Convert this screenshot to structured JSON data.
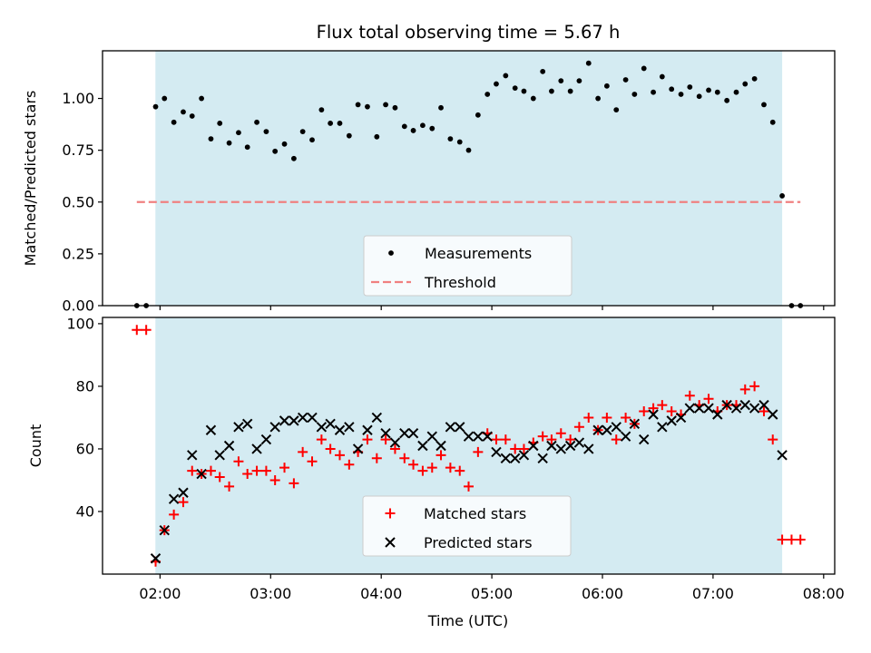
{
  "chart_data": {
    "title": "Flux total observing time = 5.67 h",
    "shaded_span": {
      "start": 1.958,
      "end": 7.625
    },
    "xlim": [
      1.48,
      8.1
    ],
    "x_ticks": [
      {
        "value": 2,
        "label": "02:00"
      },
      {
        "value": 3,
        "label": "03:00"
      },
      {
        "value": 4,
        "label": "04:00"
      },
      {
        "value": 5,
        "label": "05:00"
      },
      {
        "value": 6,
        "label": "06:00"
      },
      {
        "value": 7,
        "label": "07:00"
      },
      {
        "value": 8,
        "label": "08:00"
      }
    ],
    "xlabel": "Time (UTC)",
    "panels": [
      {
        "type": "scatter",
        "ylabel": "Matched/Predicted stars",
        "ylim": [
          0,
          1.23
        ],
        "y_ticks": [
          {
            "value": 0,
            "label": "0.00"
          },
          {
            "value": 0.25,
            "label": "0.25"
          },
          {
            "value": 0.5,
            "label": "0.50"
          },
          {
            "value": 0.75,
            "label": "0.75"
          },
          {
            "value": 1.0,
            "label": "1.00"
          }
        ],
        "legend_position": "lower-center",
        "series": [
          {
            "name": "Measurements",
            "marker": "dot",
            "color": "#000000",
            "points": [
              [
                1.79,
                0.0
              ],
              [
                1.875,
                0.0
              ],
              [
                1.96,
                0.96
              ],
              [
                2.04,
                1.0
              ],
              [
                2.125,
                0.885
              ],
              [
                2.21,
                0.935
              ],
              [
                2.29,
                0.915
              ],
              [
                2.375,
                1.0
              ],
              [
                2.46,
                0.805
              ],
              [
                2.54,
                0.88
              ],
              [
                2.625,
                0.785
              ],
              [
                2.71,
                0.835
              ],
              [
                2.79,
                0.765
              ],
              [
                2.875,
                0.885
              ],
              [
                2.96,
                0.84
              ],
              [
                3.04,
                0.745
              ],
              [
                3.125,
                0.78
              ],
              [
                3.21,
                0.71
              ],
              [
                3.29,
                0.84
              ],
              [
                3.375,
                0.8
              ],
              [
                3.46,
                0.945
              ],
              [
                3.54,
                0.88
              ],
              [
                3.625,
                0.88
              ],
              [
                3.71,
                0.82
              ],
              [
                3.79,
                0.97
              ],
              [
                3.875,
                0.96
              ],
              [
                3.96,
                0.815
              ],
              [
                4.04,
                0.97
              ],
              [
                4.125,
                0.955
              ],
              [
                4.21,
                0.865
              ],
              [
                4.29,
                0.845
              ],
              [
                4.375,
                0.87
              ],
              [
                4.46,
                0.855
              ],
              [
                4.54,
                0.955
              ],
              [
                4.625,
                0.805
              ],
              [
                4.71,
                0.79
              ],
              [
                4.79,
                0.75
              ],
              [
                4.875,
                0.92
              ],
              [
                4.96,
                1.02
              ],
              [
                5.04,
                1.07
              ],
              [
                5.125,
                1.11
              ],
              [
                5.21,
                1.05
              ],
              [
                5.29,
                1.035
              ],
              [
                5.375,
                1.0
              ],
              [
                5.46,
                1.13
              ],
              [
                5.54,
                1.035
              ],
              [
                5.625,
                1.085
              ],
              [
                5.71,
                1.035
              ],
              [
                5.79,
                1.085
              ],
              [
                5.875,
                1.17
              ],
              [
                5.96,
                1.0
              ],
              [
                6.04,
                1.06
              ],
              [
                6.125,
                0.945
              ],
              [
                6.21,
                1.09
              ],
              [
                6.29,
                1.02
              ],
              [
                6.375,
                1.145
              ],
              [
                6.46,
                1.03
              ],
              [
                6.54,
                1.105
              ],
              [
                6.625,
                1.045
              ],
              [
                6.71,
                1.02
              ],
              [
                6.79,
                1.055
              ],
              [
                6.875,
                1.01
              ],
              [
                6.96,
                1.04
              ],
              [
                7.04,
                1.03
              ],
              [
                7.125,
                0.99
              ],
              [
                7.21,
                1.03
              ],
              [
                7.29,
                1.07
              ],
              [
                7.375,
                1.095
              ],
              [
                7.46,
                0.97
              ],
              [
                7.54,
                0.885
              ],
              [
                7.625,
                0.53
              ],
              [
                7.71,
                0.0
              ],
              [
                7.79,
                0.0
              ]
            ]
          },
          {
            "name": "Threshold",
            "marker": "dashed-line",
            "color": "#f08080",
            "points": [
              [
                1.79,
                0.5
              ],
              [
                7.79,
                0.5
              ]
            ]
          }
        ]
      },
      {
        "type": "scatter",
        "ylabel": "Count",
        "ylim": [
          20,
          102
        ],
        "y_ticks": [
          {
            "value": 40,
            "label": "40"
          },
          {
            "value": 60,
            "label": "60"
          },
          {
            "value": 80,
            "label": "80"
          },
          {
            "value": 100,
            "label": "100"
          }
        ],
        "legend_position": "lower-center",
        "series": [
          {
            "name": "Matched stars",
            "marker": "plus",
            "color": "#ff0000",
            "points": [
              [
                1.79,
                98
              ],
              [
                1.875,
                98
              ],
              [
                1.96,
                24
              ],
              [
                2.04,
                34
              ],
              [
                2.125,
                39
              ],
              [
                2.21,
                43
              ],
              [
                2.29,
                53
              ],
              [
                2.375,
                52
              ],
              [
                2.46,
                53
              ],
              [
                2.54,
                51
              ],
              [
                2.625,
                48
              ],
              [
                2.71,
                56
              ],
              [
                2.79,
                52
              ],
              [
                2.875,
                53
              ],
              [
                2.96,
                53
              ],
              [
                3.04,
                50
              ],
              [
                3.125,
                54
              ],
              [
                3.21,
                49
              ],
              [
                3.29,
                59
              ],
              [
                3.375,
                56
              ],
              [
                3.46,
                63
              ],
              [
                3.54,
                60
              ],
              [
                3.625,
                58
              ],
              [
                3.71,
                55
              ],
              [
                3.79,
                59
              ],
              [
                3.875,
                63
              ],
              [
                3.96,
                57
              ],
              [
                4.04,
                63
              ],
              [
                4.125,
                60
              ],
              [
                4.21,
                57
              ],
              [
                4.29,
                55
              ],
              [
                4.375,
                53
              ],
              [
                4.46,
                54
              ],
              [
                4.54,
                58
              ],
              [
                4.625,
                54
              ],
              [
                4.71,
                53
              ],
              [
                4.79,
                48
              ],
              [
                4.875,
                59
              ],
              [
                4.96,
                65
              ],
              [
                5.04,
                63
              ],
              [
                5.125,
                63
              ],
              [
                5.21,
                60
              ],
              [
                5.29,
                60
              ],
              [
                5.375,
                62
              ],
              [
                5.46,
                64
              ],
              [
                5.54,
                63
              ],
              [
                5.625,
                65
              ],
              [
                5.71,
                63
              ],
              [
                5.79,
                67
              ],
              [
                5.875,
                70
              ],
              [
                5.96,
                66
              ],
              [
                6.04,
                70
              ],
              [
                6.125,
                63
              ],
              [
                6.21,
                70
              ],
              [
                6.29,
                68
              ],
              [
                6.375,
                72
              ],
              [
                6.46,
                73
              ],
              [
                6.54,
                74
              ],
              [
                6.625,
                72
              ],
              [
                6.71,
                71
              ],
              [
                6.79,
                77
              ],
              [
                6.875,
                74
              ],
              [
                6.96,
                76
              ],
              [
                7.04,
                72
              ],
              [
                7.125,
                74
              ],
              [
                7.21,
                74
              ],
              [
                7.29,
                79
              ],
              [
                7.375,
                80
              ],
              [
                7.46,
                72
              ],
              [
                7.54,
                63
              ],
              [
                7.625,
                31
              ],
              [
                7.71,
                31
              ],
              [
                7.79,
                31
              ]
            ]
          },
          {
            "name": "Predicted stars",
            "marker": "cross",
            "color": "#000000",
            "points": [
              [
                1.96,
                25
              ],
              [
                2.04,
                34
              ],
              [
                2.125,
                44
              ],
              [
                2.21,
                46
              ],
              [
                2.29,
                58
              ],
              [
                2.375,
                52
              ],
              [
                2.46,
                66
              ],
              [
                2.54,
                58
              ],
              [
                2.625,
                61
              ],
              [
                2.71,
                67
              ],
              [
                2.79,
                68
              ],
              [
                2.875,
                60
              ],
              [
                2.96,
                63
              ],
              [
                3.04,
                67
              ],
              [
                3.125,
                69
              ],
              [
                3.21,
                69
              ],
              [
                3.29,
                70
              ],
              [
                3.375,
                70
              ],
              [
                3.46,
                67
              ],
              [
                3.54,
                68
              ],
              [
                3.625,
                66
              ],
              [
                3.71,
                67
              ],
              [
                3.79,
                60
              ],
              [
                3.875,
                66
              ],
              [
                3.96,
                70
              ],
              [
                4.04,
                65
              ],
              [
                4.125,
                62
              ],
              [
                4.21,
                65
              ],
              [
                4.29,
                65
              ],
              [
                4.375,
                61
              ],
              [
                4.46,
                64
              ],
              [
                4.54,
                61
              ],
              [
                4.625,
                67
              ],
              [
                4.71,
                67
              ],
              [
                4.79,
                64
              ],
              [
                4.875,
                64
              ],
              [
                4.96,
                64
              ],
              [
                5.04,
                59
              ],
              [
                5.125,
                57
              ],
              [
                5.21,
                57
              ],
              [
                5.29,
                58
              ],
              [
                5.375,
                61
              ],
              [
                5.46,
                57
              ],
              [
                5.54,
                61
              ],
              [
                5.625,
                60
              ],
              [
                5.71,
                61
              ],
              [
                5.79,
                62
              ],
              [
                5.875,
                60
              ],
              [
                5.96,
                66
              ],
              [
                6.04,
                66
              ],
              [
                6.125,
                67
              ],
              [
                6.21,
                64
              ],
              [
                6.29,
                68
              ],
              [
                6.375,
                63
              ],
              [
                6.46,
                71
              ],
              [
                6.54,
                67
              ],
              [
                6.625,
                69
              ],
              [
                6.71,
                70
              ],
              [
                6.79,
                73
              ],
              [
                6.875,
                73
              ],
              [
                6.96,
                73
              ],
              [
                7.04,
                71
              ],
              [
                7.125,
                74
              ],
              [
                7.21,
                73
              ],
              [
                7.29,
                74
              ],
              [
                7.375,
                73
              ],
              [
                7.46,
                74
              ],
              [
                7.54,
                71
              ],
              [
                7.625,
                58
              ]
            ]
          }
        ]
      }
    ],
    "colors": {
      "shade": "#add8e6",
      "axes": "#000000"
    }
  }
}
